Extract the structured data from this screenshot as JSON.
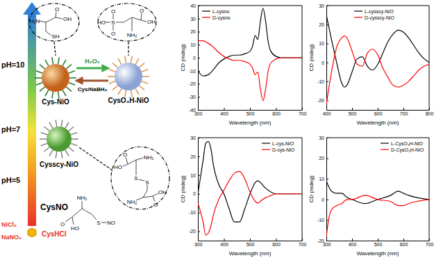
{
  "diagram": {
    "gradient_labels": [
      "pH=10",
      "pH=7",
      "pH=5"
    ],
    "reagents": [
      "NiCl₂",
      "NaNO₂",
      "CysHCl"
    ],
    "particles": [
      "Cys-NiO",
      "CysO₃H-NiO",
      "Cysscy-NiO"
    ],
    "reactions": [
      "H₂O₂",
      "Cys/NaBH₄"
    ],
    "molecules": [
      {
        "atoms": [
          "O",
          "OH",
          "H₂N",
          "SH"
        ]
      },
      {
        "atoms": [
          "O",
          "S",
          "O",
          "HO",
          "O",
          "OH",
          "NH₂"
        ]
      },
      {
        "atoms": [
          "O",
          "NH₂",
          "HO",
          "S",
          "S",
          "OH",
          "NH₂",
          "O"
        ]
      },
      {
        "label": "CysNO",
        "atoms": [
          "NH₂",
          "O",
          "HO",
          "S",
          "NO"
        ]
      }
    ]
  },
  "chart_data": [
    {
      "type": "line",
      "x_label": "Wavelength (nm)",
      "y_label": "CD (mdeg)",
      "x": [
        300,
        320,
        340,
        360,
        380,
        400,
        420,
        440,
        460,
        480,
        500,
        510,
        520,
        530,
        540,
        550,
        560,
        570,
        580,
        600,
        620,
        650,
        700
      ],
      "series": [
        {
          "name": "L-cysno",
          "color": "#000000",
          "values": [
            -10,
            -14,
            -13,
            -9,
            -4,
            -1,
            1,
            2,
            2,
            3,
            5,
            9,
            17,
            14,
            28,
            38,
            28,
            12,
            5,
            1,
            0,
            0,
            0
          ]
        },
        {
          "name": "D-cysno",
          "color": "#ff0000",
          "values": [
            13,
            13,
            11,
            8,
            4,
            1,
            -1,
            -2,
            -2,
            -3,
            -5,
            -8,
            -13,
            -11,
            -24,
            -33,
            -24,
            -10,
            -4,
            -1,
            0,
            0,
            0
          ]
        }
      ],
      "xlim": [
        300,
        700
      ],
      "xticks": [
        300,
        400,
        500,
        600,
        700
      ],
      "ylim": [
        -40,
        40
      ],
      "yticks": [
        -40,
        -30,
        -20,
        -10,
        0,
        10,
        20,
        30,
        40
      ],
      "legend": "upper left"
    },
    {
      "type": "line",
      "x_label": "Wavelength (nm)",
      "y_label": "CD (mdeg)",
      "x": [
        400,
        420,
        440,
        460,
        470,
        480,
        500,
        520,
        540,
        560,
        580,
        600,
        620,
        640,
        660,
        680,
        700,
        720,
        740,
        760,
        780,
        800
      ],
      "series": [
        {
          "name": "L-cysscy-NiO",
          "color": "#000000",
          "values": [
            25,
            12,
            0,
            -11,
            -13,
            -12,
            -5,
            2,
            3,
            -2,
            -4,
            -1,
            5,
            11,
            15,
            17,
            16,
            13,
            9,
            5,
            2,
            0
          ]
        },
        {
          "name": "D-cysscy-NiO",
          "color": "#ff0000",
          "values": [
            -22,
            -5,
            8,
            13,
            14,
            13,
            6,
            -1,
            -2,
            5,
            7,
            4,
            -3,
            -8,
            -12,
            -13,
            -12,
            -10,
            -7,
            -4,
            -2,
            -1
          ]
        }
      ],
      "xlim": [
        400,
        800
      ],
      "xticks": [
        400,
        500,
        600,
        700,
        800
      ],
      "ylim": [
        -25,
        30
      ],
      "yticks": [
        -20,
        -10,
        0,
        10,
        20,
        30
      ],
      "legend": "upper center"
    },
    {
      "type": "line",
      "x_label": "Wavelength (nm)",
      "y_label": "CD (mdeg)",
      "x": [
        300,
        320,
        330,
        340,
        350,
        360,
        380,
        400,
        420,
        440,
        460,
        480,
        500,
        520,
        530,
        540,
        560,
        580,
        600,
        620,
        650,
        700
      ],
      "series": [
        {
          "name": "L-cys-NiO",
          "color": "#000000",
          "values": [
            0,
            18,
            27,
            28,
            24,
            15,
            5,
            0,
            -8,
            -15,
            -15,
            -8,
            0,
            6,
            7,
            6,
            3,
            1,
            0,
            0,
            0,
            0
          ]
        },
        {
          "name": "D-cys-NiO",
          "color": "#ff0000",
          "values": [
            -5,
            -15,
            -22,
            -21,
            -17,
            -11,
            -3,
            2,
            7,
            11,
            12,
            8,
            1,
            -4,
            -5,
            -4,
            -2,
            -1,
            0,
            0,
            0,
            0
          ]
        }
      ],
      "xlim": [
        300,
        700
      ],
      "xticks": [
        300,
        400,
        500,
        600,
        700
      ],
      "ylim": [
        -25,
        30
      ],
      "yticks": [
        -20,
        -10,
        0,
        10,
        20,
        30
      ],
      "legend": "upper right"
    },
    {
      "type": "line",
      "x_label": "Wavelength (nm)",
      "y_label": "CD (mdeg)",
      "x": [
        300,
        310,
        320,
        340,
        360,
        380,
        400,
        450,
        500,
        550,
        580,
        600,
        620,
        650,
        700
      ],
      "series": [
        {
          "name": "L-CysO₃H-NiO",
          "color": "#000000",
          "values": [
            9,
            6,
            4,
            3,
            3,
            1,
            0,
            -2,
            0,
            2,
            4,
            3,
            2,
            1,
            0
          ]
        },
        {
          "name": "D-CysO₃H-NiO",
          "color": "#ff0000",
          "values": [
            -18,
            -9,
            -5,
            -3,
            -2,
            0,
            0,
            2,
            0,
            -1,
            -3,
            -3,
            -2,
            -1,
            0
          ]
        }
      ],
      "xlim": [
        300,
        700
      ],
      "xticks": [
        300,
        400,
        500,
        600,
        700
      ],
      "ylim": [
        -20,
        30
      ],
      "yticks": [
        -20,
        -10,
        0,
        10,
        20,
        30
      ],
      "legend": "upper right"
    }
  ]
}
